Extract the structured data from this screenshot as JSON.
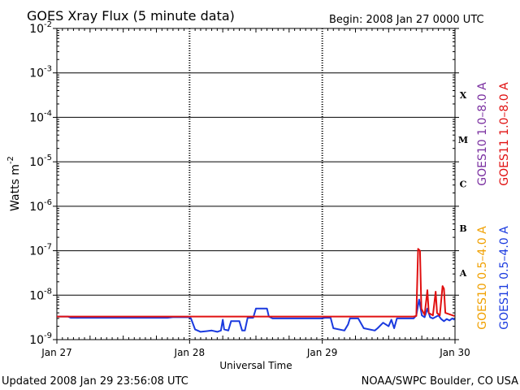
{
  "title": "GOES Xray Flux (5 minute data)",
  "begin_label": "Begin:  2008 Jan 27 0000 UTC",
  "updated_label": "Updated 2008 Jan 29 23:56:08 UTC",
  "source_label": "NOAA/SWPC Boulder, CO USA",
  "colors": {
    "goes10_long": "#7a2fa0",
    "goes11_long": "#e01010",
    "goes10_short": "#f0a000",
    "goes11_short": "#1a3adf"
  },
  "chart_data": {
    "type": "line",
    "title": "GOES Xray Flux (5 minute data)",
    "xlabel": "Universal Time",
    "ylabel": "Watts m",
    "ylabel_superscript": "-2",
    "yscale": "log",
    "ylim": [
      1e-09,
      0.01
    ],
    "xlim": [
      "2008-01-27 00:00",
      "2008-01-30 00:00"
    ],
    "x_ticks": [
      "Jan 27",
      "Jan 28",
      "Jan 29",
      "Jan 30"
    ],
    "y_ticks": [
      {
        "base": "10",
        "exp": "-2"
      },
      {
        "base": "10",
        "exp": "-3"
      },
      {
        "base": "10",
        "exp": "-4"
      },
      {
        "base": "10",
        "exp": "-5"
      },
      {
        "base": "10",
        "exp": "-6"
      },
      {
        "base": "10",
        "exp": "-7"
      },
      {
        "base": "10",
        "exp": "-8"
      },
      {
        "base": "10",
        "exp": "-9"
      }
    ],
    "flare_classes": [
      "X",
      "M",
      "C",
      "B",
      "A"
    ],
    "legend": {
      "placement": "right",
      "entries": [
        {
          "label": "GOES10 1.0–8.0 A",
          "color": "#7a2fa0"
        },
        {
          "label": "GOES11 1.0–8.0 A",
          "color": "#e01010"
        },
        {
          "label": "GOES10 0.5–4.0 A",
          "color": "#f0a000"
        },
        {
          "label": "GOES11 0.5–4.0 A",
          "color": "#1a3adf"
        }
      ]
    },
    "series": [
      {
        "name": "GOES11 0.5–4.0 A",
        "color": "#1a3adf",
        "points": [
          [
            "2008-01-27 00:00",
            3.3e-09
          ],
          [
            "2008-01-27 02:00",
            3.3e-09
          ],
          [
            "2008-01-27 02:30",
            3.1e-09
          ],
          [
            "2008-01-27 20:00",
            3.1e-09
          ],
          [
            "2008-01-27 21:00",
            3.2e-09
          ],
          [
            "2008-01-27 23:50",
            3.2e-09
          ],
          [
            "2008-01-28 00:15",
            3e-09
          ],
          [
            "2008-01-28 01:00",
            1.7e-09
          ],
          [
            "2008-01-28 02:00",
            1.5e-09
          ],
          [
            "2008-01-28 04:00",
            1.6e-09
          ],
          [
            "2008-01-28 05:00",
            1.5e-09
          ],
          [
            "2008-01-28 05:40",
            1.6e-09
          ],
          [
            "2008-01-28 06:00",
            2.8e-09
          ],
          [
            "2008-01-28 06:15",
            1.7e-09
          ],
          [
            "2008-01-28 07:00",
            1.6e-09
          ],
          [
            "2008-01-28 07:30",
            2.6e-09
          ],
          [
            "2008-01-28 09:00",
            2.6e-09
          ],
          [
            "2008-01-28 09:30",
            1.6e-09
          ],
          [
            "2008-01-28 10:00",
            1.6e-09
          ],
          [
            "2008-01-28 10:30",
            3.1e-09
          ],
          [
            "2008-01-28 11:30",
            3.1e-09
          ],
          [
            "2008-01-28 12:00",
            5e-09
          ],
          [
            "2008-01-28 14:00",
            5e-09
          ],
          [
            "2008-01-28 14:20",
            3.3e-09
          ],
          [
            "2008-01-28 15:00",
            3e-09
          ],
          [
            "2008-01-28 23:50",
            3e-09
          ],
          [
            "2008-01-29 00:30",
            3.1e-09
          ],
          [
            "2008-01-29 01:30",
            3.1e-09
          ],
          [
            "2008-01-29 02:00",
            1.8e-09
          ],
          [
            "2008-01-29 04:00",
            1.6e-09
          ],
          [
            "2008-01-29 04:40",
            2.2e-09
          ],
          [
            "2008-01-29 05:00",
            3e-09
          ],
          [
            "2008-01-29 06:30",
            3e-09
          ],
          [
            "2008-01-29 07:30",
            1.8e-09
          ],
          [
            "2008-01-29 09:30",
            1.6e-09
          ],
          [
            "2008-01-29 10:00",
            1.8e-09
          ],
          [
            "2008-01-29 11:00",
            2.4e-09
          ],
          [
            "2008-01-29 12:00",
            2e-09
          ],
          [
            "2008-01-29 12:30",
            2.8e-09
          ],
          [
            "2008-01-29 13:00",
            1.8e-09
          ],
          [
            "2008-01-29 13:30",
            3e-09
          ],
          [
            "2008-01-29 16:30",
            3e-09
          ],
          [
            "2008-01-29 17:00",
            3.5e-09
          ],
          [
            "2008-01-29 17:30",
            8e-09
          ],
          [
            "2008-01-29 18:00",
            3.5e-09
          ],
          [
            "2008-01-29 18:30",
            3.2e-09
          ],
          [
            "2008-01-29 19:00",
            5e-09
          ],
          [
            "2008-01-29 19:30",
            3.2e-09
          ],
          [
            "2008-01-29 20:00",
            3e-09
          ],
          [
            "2008-01-29 21:00",
            3.5e-09
          ],
          [
            "2008-01-29 21:30",
            2.9e-09
          ],
          [
            "2008-01-29 22:00",
            2.6e-09
          ],
          [
            "2008-01-29 22:30",
            2.9e-09
          ],
          [
            "2008-01-29 23:00",
            2.7e-09
          ],
          [
            "2008-01-29 23:30",
            3e-09
          ],
          [
            "2008-01-29 23:55",
            2.8e-09
          ]
        ]
      },
      {
        "name": "GOES11 1.0–8.0 A",
        "color": "#e01010",
        "points": [
          [
            "2008-01-27 00:00",
            3.3e-09
          ],
          [
            "2008-01-29 16:30",
            3.3e-09
          ],
          [
            "2008-01-29 17:00",
            3.4e-09
          ],
          [
            "2008-01-29 17:20",
            1.1e-07
          ],
          [
            "2008-01-29 17:40",
            1e-07
          ],
          [
            "2008-01-29 17:55",
            5e-09
          ],
          [
            "2008-01-29 18:30",
            3.6e-09
          ],
          [
            "2008-01-29 19:00",
            1.3e-08
          ],
          [
            "2008-01-29 19:15",
            4e-09
          ],
          [
            "2008-01-29 20:00",
            3.5e-09
          ],
          [
            "2008-01-29 20:30",
            1.2e-08
          ],
          [
            "2008-01-29 20:45",
            4e-09
          ],
          [
            "2008-01-29 21:15",
            3.5e-09
          ],
          [
            "2008-01-29 21:45",
            1.6e-08
          ],
          [
            "2008-01-29 22:00",
            1.4e-08
          ],
          [
            "2008-01-29 22:15",
            4e-09
          ],
          [
            "2008-01-29 23:55",
            3.4e-09
          ]
        ]
      }
    ]
  }
}
